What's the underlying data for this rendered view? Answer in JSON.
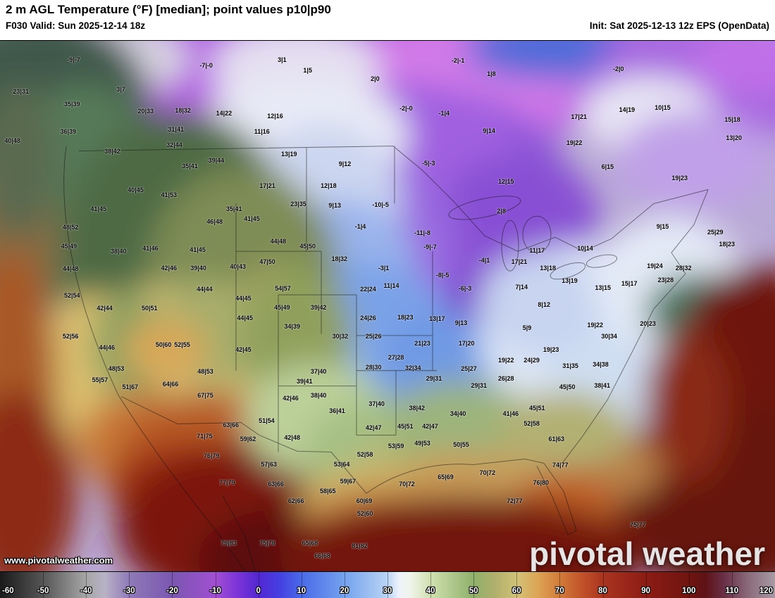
{
  "header": {
    "title": "2 m AGL Temperature (°F) [median]; point values p10|p90",
    "valid": "F030 Valid: Sun 2025-12-14 18z",
    "init": "Init: Sat 2025-12-13 12z EPS (OpenData)"
  },
  "map": {
    "watermark": "www.pivotalweather.com",
    "logo": "pivotal weather",
    "points": [
      [
        "-9|-7",
        9.5,
        3.6
      ],
      [
        "-7|-0",
        26.6,
        4.6
      ],
      [
        "3|1",
        36.4,
        3.6
      ],
      [
        "1|5",
        39.7,
        5.6
      ],
      [
        "-2|-1",
        59.1,
        3.7
      ],
      [
        "-2|0",
        79.8,
        5.3
      ],
      [
        "23|31",
        2.7,
        9.5
      ],
      [
        "3|7",
        15.6,
        9.2
      ],
      [
        "2|0",
        48.4,
        7.2
      ],
      [
        "1|8",
        63.4,
        6.2
      ],
      [
        "35|39",
        9.3,
        11.9
      ],
      [
        "20|33",
        18.8,
        13.3
      ],
      [
        "18|32",
        23.6,
        13.1
      ],
      [
        "14|22",
        28.9,
        13.7
      ],
      [
        "12|16",
        35.5,
        14.2
      ],
      [
        "-2|-0",
        52.4,
        12.7
      ],
      [
        "-1|4",
        57.3,
        13.7
      ],
      [
        "9|14",
        63.1,
        17.0
      ],
      [
        "14|19",
        80.9,
        13.0
      ],
      [
        "10|15",
        85.5,
        12.6
      ],
      [
        "17|21",
        74.7,
        14.3
      ],
      [
        "15|18",
        94.5,
        14.9
      ],
      [
        "36|39",
        8.8,
        17.1
      ],
      [
        "31|41",
        22.7,
        16.7
      ],
      [
        "11|16",
        33.8,
        17.1
      ],
      [
        "38|42",
        14.5,
        20.8
      ],
      [
        "32|44",
        22.5,
        19.6
      ],
      [
        "39|44",
        27.9,
        22.5
      ],
      [
        "13|19",
        37.3,
        21.4
      ],
      [
        "19|22",
        74.1,
        19.2
      ],
      [
        "13|20",
        94.7,
        18.3
      ],
      [
        "40|48",
        1.6,
        18.8
      ],
      [
        "35|41",
        24.5,
        23.6
      ],
      [
        "9|12",
        44.5,
        23.2
      ],
      [
        "-5|-3",
        55.3,
        23.1
      ],
      [
        "6|15",
        78.4,
        23.7
      ],
      [
        "12|15",
        65.3,
        26.5
      ],
      [
        "19|23",
        87.7,
        25.9
      ],
      [
        "17|21",
        34.5,
        27.3
      ],
      [
        "12|18",
        42.4,
        27.3
      ],
      [
        "40|45",
        17.5,
        28.1
      ],
      [
        "41|53",
        21.8,
        29.0
      ],
      [
        "23|35",
        38.5,
        30.8
      ],
      [
        "9|13",
        43.2,
        31.0
      ],
      [
        "-10|-5",
        49.1,
        30.9
      ],
      [
        "41|45",
        12.7,
        31.7
      ],
      [
        "35|41",
        30.2,
        31.7
      ],
      [
        "2|8",
        64.7,
        32.1
      ],
      [
        "46|48",
        27.7,
        34.1
      ],
      [
        "41|45",
        32.5,
        33.6
      ],
      [
        "-1|4",
        46.5,
        35.0
      ],
      [
        "48|52",
        9.1,
        35.1
      ],
      [
        "9|15",
        85.5,
        35.0
      ],
      [
        "25|29",
        92.3,
        36.1
      ],
      [
        "11|17",
        69.3,
        39.5
      ],
      [
        "10|14",
        75.5,
        39.1
      ],
      [
        "45|49",
        8.9,
        38.7
      ],
      [
        "38|40",
        15.3,
        39.7
      ],
      [
        "41|46",
        19.4,
        39.1
      ],
      [
        "41|45",
        25.5,
        39.4
      ],
      [
        "44|48",
        35.9,
        37.8
      ],
      [
        "45|50",
        39.7,
        38.7
      ],
      [
        "-11|-8",
        54.5,
        36.2
      ],
      [
        "-9|-7",
        55.5,
        38.9
      ],
      [
        "18|23",
        93.8,
        38.3
      ],
      [
        "19|24",
        84.5,
        42.4
      ],
      [
        "28|32",
        88.2,
        42.8
      ],
      [
        "44|48",
        9.1,
        43.0
      ],
      [
        "42|46",
        21.8,
        42.8
      ],
      [
        "39|40",
        25.6,
        42.8
      ],
      [
        "40|43",
        30.7,
        42.6
      ],
      [
        "47|50",
        34.5,
        41.6
      ],
      [
        "18|32",
        43.8,
        41.1
      ],
      [
        "-3|1",
        49.5,
        42.8
      ],
      [
        "-4|1",
        62.5,
        41.4
      ],
      [
        "17|21",
        67.0,
        41.6
      ],
      [
        "13|18",
        70.7,
        42.8
      ],
      [
        "-8|-5",
        57.1,
        44.2
      ],
      [
        "13|19",
        73.5,
        45.2
      ],
      [
        "13|15",
        77.8,
        46.6
      ],
      [
        "15|17",
        81.2,
        45.8
      ],
      [
        "23|28",
        85.9,
        45.1
      ],
      [
        "52|54",
        9.3,
        48.0
      ],
      [
        "44|44",
        26.4,
        46.8
      ],
      [
        "54|57",
        36.5,
        46.7
      ],
      [
        "22|24",
        47.5,
        46.8
      ],
      [
        "11|14",
        50.5,
        46.2
      ],
      [
        "-6|-3",
        60.0,
        46.7
      ],
      [
        "7|14",
        67.3,
        46.4
      ],
      [
        "8|12",
        70.2,
        49.7
      ],
      [
        "42|44",
        13.5,
        50.4
      ],
      [
        "50|51",
        19.3,
        50.4
      ],
      [
        "44|45",
        31.4,
        48.5
      ],
      [
        "45|49",
        36.4,
        50.3
      ],
      [
        "39|42",
        41.1,
        50.3
      ],
      [
        "24|26",
        47.5,
        52.3
      ],
      [
        "18|23",
        52.3,
        52.1
      ],
      [
        "13|17",
        56.4,
        52.4
      ],
      [
        "9|13",
        59.5,
        53.2
      ],
      [
        "5|9",
        68.0,
        54.1
      ],
      [
        "19|22",
        76.8,
        53.6
      ],
      [
        "20|23",
        83.6,
        53.3
      ],
      [
        "30|34",
        78.6,
        55.7
      ],
      [
        "44|45",
        31.6,
        52.3
      ],
      [
        "34|39",
        37.7,
        53.8
      ],
      [
        "30|32",
        43.9,
        55.7
      ],
      [
        "25|26",
        48.2,
        55.7
      ],
      [
        "21|23",
        54.5,
        57.0
      ],
      [
        "17|20",
        60.2,
        57.0
      ],
      [
        "19|23",
        71.1,
        58.2
      ],
      [
        "52|56",
        9.1,
        55.7
      ],
      [
        "44|46",
        13.8,
        57.8
      ],
      [
        "50|60",
        21.1,
        57.3
      ],
      [
        "52|55",
        23.5,
        57.3
      ],
      [
        "42|45",
        31.4,
        58.2
      ],
      [
        "27|28",
        51.1,
        59.7
      ],
      [
        "28|30",
        48.2,
        61.5
      ],
      [
        "32|34",
        53.3,
        61.7
      ],
      [
        "29|31",
        56.0,
        63.7
      ],
      [
        "25|27",
        60.5,
        61.8
      ],
      [
        "19|22",
        65.3,
        60.2
      ],
      [
        "24|29",
        68.6,
        60.2
      ],
      [
        "31|35",
        73.6,
        61.3
      ],
      [
        "34|38",
        77.5,
        61.0
      ],
      [
        "48|53",
        15.0,
        61.8
      ],
      [
        "55|57",
        12.9,
        63.9
      ],
      [
        "51|67",
        16.8,
        65.3
      ],
      [
        "64|66",
        22.0,
        64.7
      ],
      [
        "48|53",
        26.5,
        62.3
      ],
      [
        "37|40",
        41.1,
        62.3
      ],
      [
        "39|41",
        39.3,
        64.2
      ],
      [
        "29|31",
        61.8,
        65.0
      ],
      [
        "26|28",
        65.3,
        63.7
      ],
      [
        "45|50",
        73.2,
        65.3
      ],
      [
        "38|41",
        77.7,
        65.0
      ],
      [
        "67|75",
        26.5,
        66.8
      ],
      [
        "42|46",
        37.5,
        67.4
      ],
      [
        "38|40",
        41.1,
        66.8
      ],
      [
        "37|40",
        48.6,
        68.4
      ],
      [
        "36|41",
        43.5,
        69.8
      ],
      [
        "38|42",
        53.8,
        69.2
      ],
      [
        "34|40",
        59.1,
        70.3
      ],
      [
        "41|46",
        65.9,
        70.3
      ],
      [
        "45|51",
        69.3,
        69.2
      ],
      [
        "63|66",
        29.8,
        72.4
      ],
      [
        "51|54",
        34.4,
        71.6
      ],
      [
        "71|75",
        26.4,
        74.5
      ],
      [
        "42|48",
        37.7,
        74.8
      ],
      [
        "42|47",
        48.2,
        72.9
      ],
      [
        "45|51",
        52.3,
        72.7
      ],
      [
        "42|47",
        55.5,
        72.7
      ],
      [
        "52|58",
        68.6,
        72.1
      ],
      [
        "61|63",
        71.8,
        75.1
      ],
      [
        "59|62",
        32.0,
        75.1
      ],
      [
        "53|59",
        51.1,
        76.4
      ],
      [
        "49|53",
        54.5,
        75.9
      ],
      [
        "50|55",
        59.5,
        76.1
      ],
      [
        "52|58",
        47.1,
        78.0
      ],
      [
        "76|79",
        27.3,
        78.2
      ],
      [
        "57|63",
        34.7,
        79.8
      ],
      [
        "53|64",
        44.1,
        79.8
      ],
      [
        "65|69",
        57.5,
        82.2
      ],
      [
        "70|72",
        62.9,
        81.4
      ],
      [
        "74|77",
        72.3,
        80.0
      ],
      [
        "77|79",
        29.3,
        83.3
      ],
      [
        "59|67",
        44.9,
        83.0
      ],
      [
        "63|66",
        35.6,
        83.6
      ],
      [
        "70|72",
        52.5,
        83.6
      ],
      [
        "76|80",
        69.8,
        83.3
      ],
      [
        "58|65",
        42.3,
        84.9
      ],
      [
        "72|77",
        66.4,
        86.7
      ],
      [
        "62|66",
        38.2,
        86.7
      ],
      [
        "60|69",
        47.0,
        86.7
      ],
      [
        "52|60",
        47.1,
        89.1
      ],
      [
        "75|77",
        82.3,
        91.2
      ],
      [
        "79|83",
        29.5,
        94.7
      ],
      [
        "75|78",
        34.5,
        94.7
      ],
      [
        "65|68",
        40.0,
        94.7
      ],
      [
        "81|82",
        46.4,
        95.2
      ],
      [
        "66|68",
        41.6,
        97.1
      ]
    ]
  },
  "colorbar": {
    "unit": "°F",
    "min": -60,
    "max": 120,
    "ticks": [
      "-60",
      "-50",
      "-40",
      "-30",
      "-20",
      "-10",
      "0",
      "10",
      "20",
      "30",
      "40",
      "50",
      "60",
      "70",
      "80",
      "90",
      "100",
      "110",
      "120"
    ],
    "stops": [
      {
        "p": 0,
        "c": "#1a1a1a"
      },
      {
        "p": 5.5,
        "c": "#555555"
      },
      {
        "p": 11.1,
        "c": "#a6a6a6"
      },
      {
        "p": 13.5,
        "c": "#b8b2c6"
      },
      {
        "p": 16.7,
        "c": "#8f7ab8"
      },
      {
        "p": 22.2,
        "c": "#7a57b0"
      },
      {
        "p": 27.8,
        "c": "#a14fd2"
      },
      {
        "p": 30.5,
        "c": "#7e35d8"
      },
      {
        "p": 33.3,
        "c": "#5327d2"
      },
      {
        "p": 36.1,
        "c": "#4540e2"
      },
      {
        "p": 38.9,
        "c": "#4a6ae8"
      },
      {
        "p": 44.4,
        "c": "#74a2ee"
      },
      {
        "p": 50,
        "c": "#b9d4f6"
      },
      {
        "p": 51.5,
        "c": "#eef3fb"
      },
      {
        "p": 53,
        "c": "#f0f4ea"
      },
      {
        "p": 55.6,
        "c": "#cfe0ae"
      },
      {
        "p": 61.1,
        "c": "#8fb06a"
      },
      {
        "p": 63.9,
        "c": "#b0b06c"
      },
      {
        "p": 66.7,
        "c": "#d2c278"
      },
      {
        "p": 69.4,
        "c": "#dca454"
      },
      {
        "p": 72.2,
        "c": "#d27c3a"
      },
      {
        "p": 75,
        "c": "#c2542a"
      },
      {
        "p": 77.8,
        "c": "#aa3420"
      },
      {
        "p": 83.3,
        "c": "#8c1c14"
      },
      {
        "p": 88.9,
        "c": "#701410"
      },
      {
        "p": 91,
        "c": "#5e1216"
      },
      {
        "p": 93.5,
        "c": "#6a3048"
      },
      {
        "p": 96.5,
        "c": "#8a6a7a"
      },
      {
        "p": 100,
        "c": "#a89aa4"
      }
    ]
  }
}
